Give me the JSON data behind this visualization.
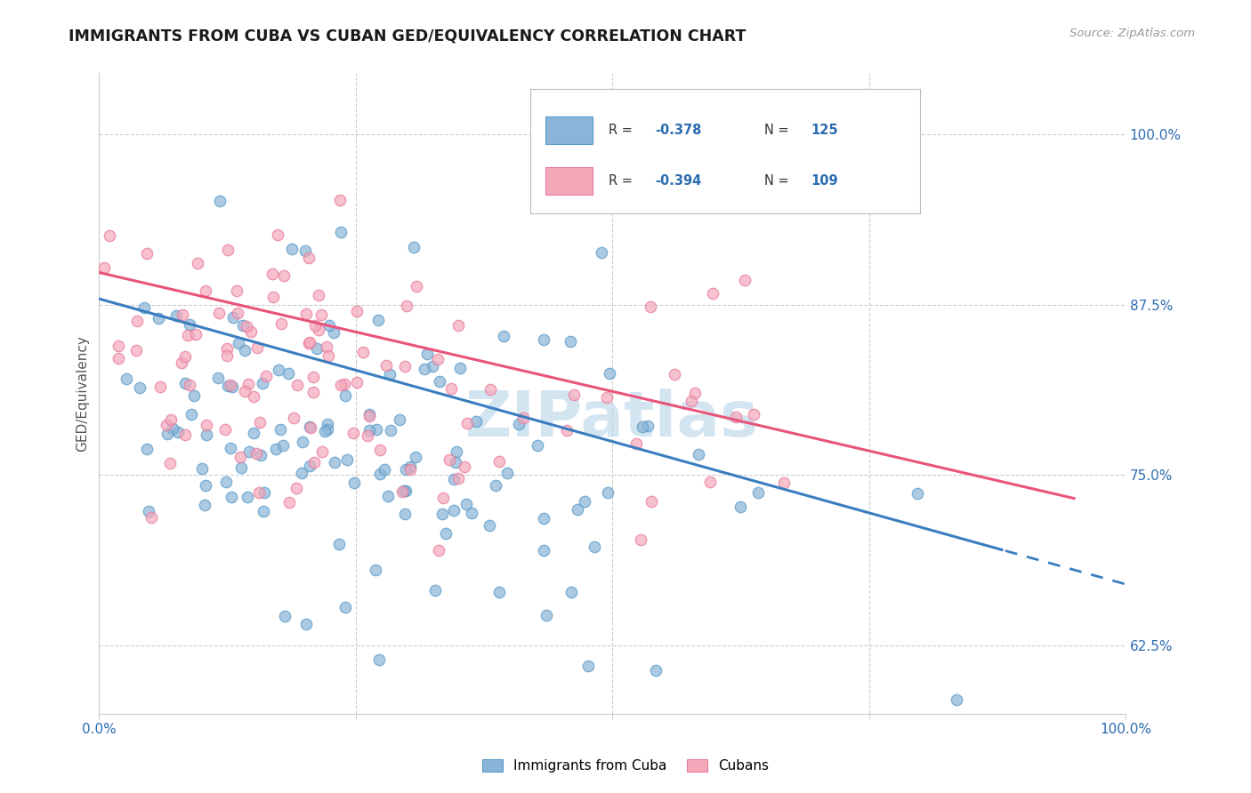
{
  "title": "IMMIGRANTS FROM CUBA VS CUBAN GED/EQUIVALENCY CORRELATION CHART",
  "source": "Source: ZipAtlas.com",
  "ylabel": "GED/Equivalency",
  "ytick_labels": [
    "62.5%",
    "75.0%",
    "87.5%",
    "100.0%"
  ],
  "ytick_values": [
    0.625,
    0.75,
    0.875,
    1.0
  ],
  "xlim": [
    0.0,
    1.0
  ],
  "ylim": [
    0.575,
    1.045
  ],
  "legend_r1": "-0.378",
  "legend_n1": "125",
  "legend_r2": "-0.394",
  "legend_n2": "109",
  "color_blue": "#8ab4d8",
  "color_blue_edge": "#5a9bc8",
  "color_pink": "#f4a7b9",
  "color_pink_edge": "#e87aa0",
  "color_blue_line": "#3a7ec0",
  "color_pink_line": "#e8547a",
  "color_blue_text": "#2b6cb0",
  "color_title": "#1a1a1a",
  "color_grid": "#cccccc",
  "watermark": "ZIPatlas",
  "watermark_color": "#b8d4ea",
  "scatter_alpha": 0.7,
  "scatter_size": 80
}
